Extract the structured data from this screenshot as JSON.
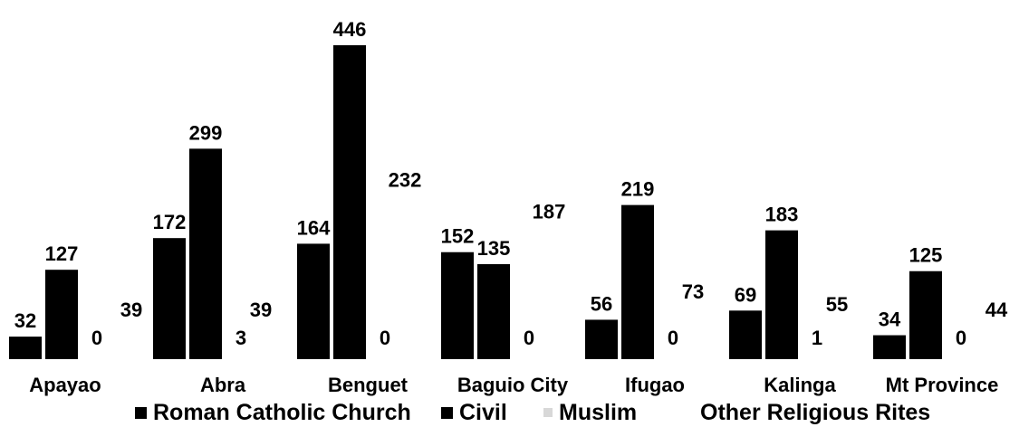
{
  "chart_data": {
    "type": "bar",
    "title": "",
    "xlabel": "",
    "ylabel": "",
    "ylim": [
      0,
      460
    ],
    "grid": false,
    "legend_position": "bottom",
    "categories": [
      "Apayao",
      "Abra",
      "Benguet",
      "Baguio City",
      "Ifugao",
      "Kalinga",
      "Mt Province"
    ],
    "series": [
      {
        "name": "Roman Catholic Church",
        "values": [
          32,
          172,
          164,
          152,
          56,
          69,
          34
        ],
        "color": "#000000"
      },
      {
        "name": "Civil",
        "values": [
          127,
          299,
          446,
          135,
          219,
          183,
          125
        ],
        "color": "#000000"
      },
      {
        "name": "Muslim",
        "values": [
          0,
          3,
          0,
          0,
          0,
          1,
          0
        ],
        "color": "#d8d8d8"
      },
      {
        "name": "Other Religious Rites",
        "values": [
          39,
          39,
          232,
          187,
          73,
          55,
          44
        ],
        "color": "#ffffff"
      }
    ]
  }
}
